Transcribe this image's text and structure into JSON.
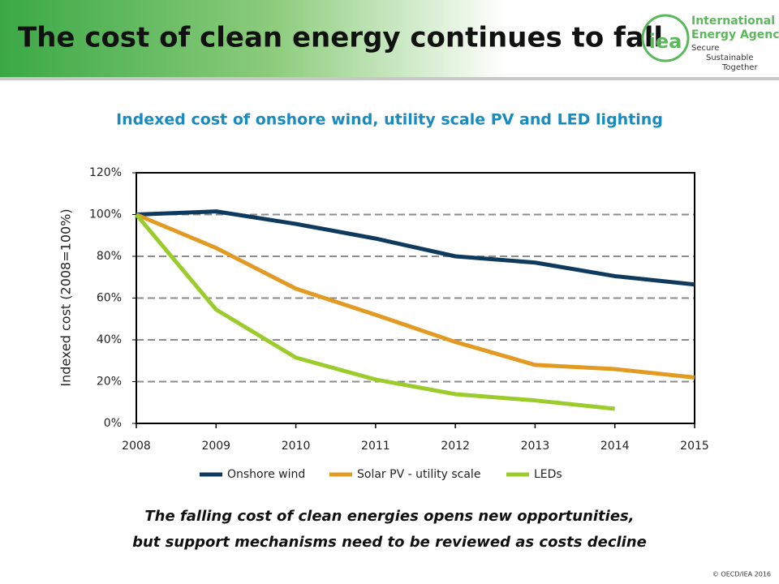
{
  "header": {
    "title": "The cost of clean energy continues to fall",
    "logo": {
      "mark": "iea",
      "name_line1": "International",
      "name_line2": "Energy Agency",
      "tag1": "Secure",
      "tag2": "Sustainable",
      "tag3": "Together"
    }
  },
  "chart_data": {
    "type": "line",
    "title": "Indexed cost of onshore wind, utility scale PV and LED lighting",
    "y_label": "Indexed cost (2008=100%)",
    "x": [
      2008,
      2009,
      2010,
      2011,
      2012,
      2013,
      2014,
      2015
    ],
    "xlim": [
      2008,
      2015
    ],
    "xticks": [
      2008,
      2009,
      2010,
      2011,
      2012,
      2013,
      2014,
      2015
    ],
    "ylim": [
      0,
      120
    ],
    "yticks": [
      {
        "value": 0,
        "label": "0%"
      },
      {
        "value": 20,
        "label": "20%"
      },
      {
        "value": 40,
        "label": "40%"
      },
      {
        "value": 60,
        "label": "60%"
      },
      {
        "value": 80,
        "label": "80%"
      },
      {
        "value": 100,
        "label": "100%"
      },
      {
        "value": 120,
        "label": "120%"
      }
    ],
    "grid": true,
    "legend": "bottom",
    "series": [
      {
        "name": "Onshore wind",
        "color": "#0e3a5e",
        "values": [
          100,
          101.5,
          95.5,
          88.5,
          80,
          77,
          70.5,
          66.5
        ]
      },
      {
        "name": "Solar PV - utility scale",
        "color": "#e39a22",
        "values": [
          100,
          84,
          64.5,
          52,
          39,
          28,
          26,
          22
        ]
      },
      {
        "name": "LEDs",
        "color": "#9ccb2c",
        "values": [
          100,
          54.5,
          31.5,
          21,
          14,
          11,
          7,
          null
        ]
      }
    ]
  },
  "caption": {
    "line1": "The falling cost of clean energies opens new opportunities,",
    "line2": "but support mechanisms need to be reviewed as costs decline"
  },
  "footer": {
    "copyright": "© OECD/IEA 2016"
  }
}
